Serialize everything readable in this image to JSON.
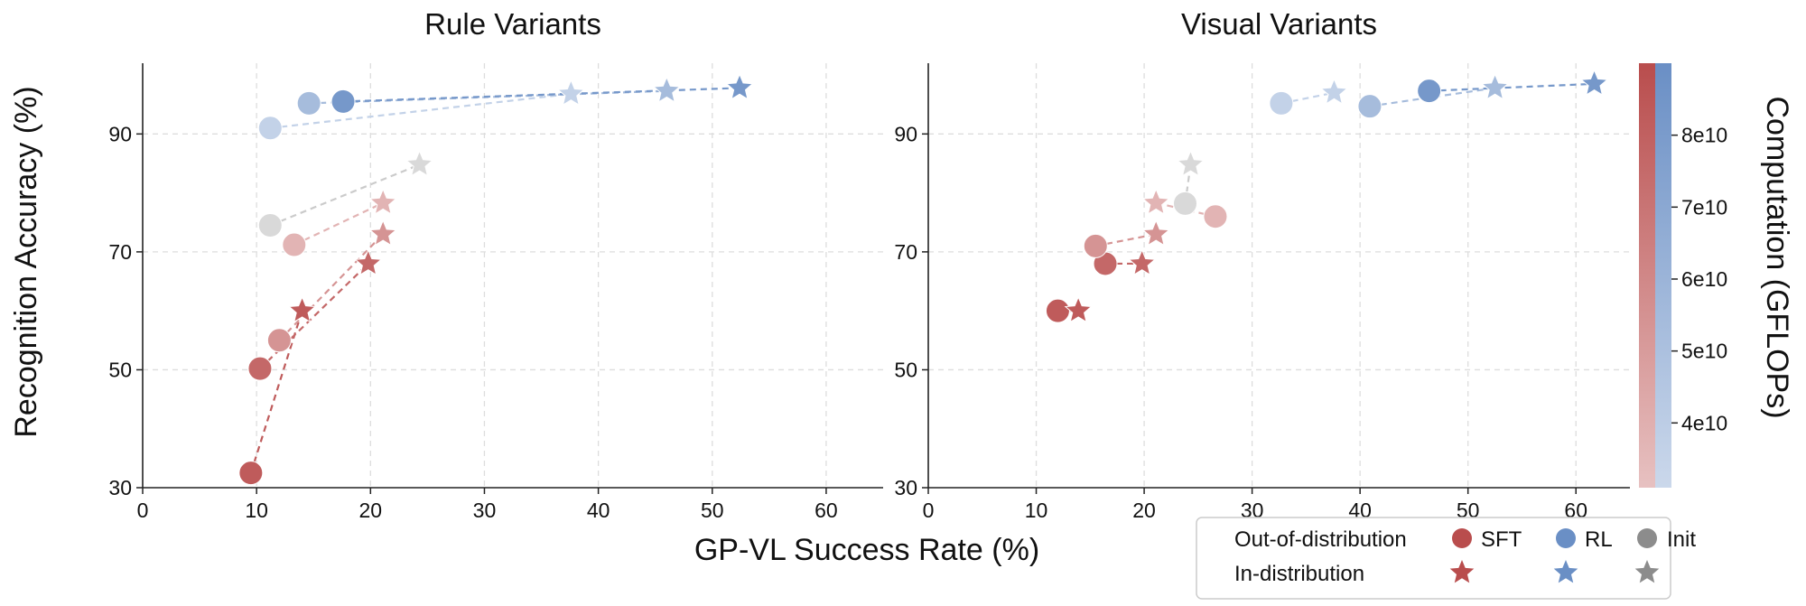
{
  "figure": {
    "xlabel": "GP-VL Success Rate (%)",
    "ylabel": "Recognition Accuracy (%)",
    "colorbar_label": "Computation (GFLOPs)",
    "colorbar_ticks": [
      "8e10",
      "7e10",
      "6e10",
      "5e10",
      "4e10"
    ],
    "colorbar_tick_values": [
      80000000000.0,
      70000000000.0,
      60000000000.0,
      50000000000.0,
      40000000000.0
    ],
    "colorbar_range": [
      31000000000.0,
      90000000000.0
    ]
  },
  "legend": {
    "row_ood_label": "Out-of-distribution",
    "row_id_label": "In-distribution",
    "sft_label": "SFT",
    "rl_label": "RL",
    "init_label": "Init"
  },
  "colors": {
    "sft": "#b94d4d",
    "rl": "#6a8fc5",
    "init": "#8c8c8c",
    "init_light": "#d9d9d9",
    "grid": "#dddddd"
  },
  "chart_data": [
    {
      "type": "scatter",
      "title": "Rule Variants",
      "xlabel": "GP-VL Success Rate (%)",
      "ylabel": "Recognition Accuracy (%)",
      "xlim": [
        0,
        65
      ],
      "ylim": [
        30,
        102
      ],
      "xticks": [
        0,
        10,
        20,
        30,
        40,
        50,
        60
      ],
      "yticks": [
        30,
        50,
        70,
        90
      ],
      "grid": true,
      "pairs": [
        {
          "group": "SFT",
          "alpha": 0.92,
          "ood": [
            9.5,
            32.5
          ],
          "id": [
            14.0,
            60.0
          ]
        },
        {
          "group": "SFT",
          "alpha": 0.85,
          "ood": [
            10.3,
            50.2
          ],
          "id": [
            19.8,
            68.0
          ]
        },
        {
          "group": "SFT",
          "alpha": 0.6,
          "ood": [
            12.0,
            55.0
          ],
          "id": [
            21.1,
            73.0
          ]
        },
        {
          "group": "SFT",
          "alpha": 0.42,
          "ood": [
            13.3,
            71.2
          ],
          "id": [
            21.1,
            78.3
          ]
        },
        {
          "group": "Init",
          "alpha": 1.0,
          "ood": [
            11.2,
            74.5
          ],
          "id": [
            24.3,
            84.8
          ]
        },
        {
          "group": "RL",
          "alpha": 0.4,
          "ood": [
            11.2,
            91.0
          ],
          "id": [
            37.6,
            96.8
          ]
        },
        {
          "group": "RL",
          "alpha": 0.6,
          "ood": [
            14.6,
            95.2
          ],
          "id": [
            46.0,
            97.3
          ]
        },
        {
          "group": "RL",
          "alpha": 0.92,
          "ood": [
            17.6,
            95.5
          ],
          "id": [
            52.4,
            97.8
          ]
        }
      ]
    },
    {
      "type": "scatter",
      "title": "Visual Variants",
      "xlabel": "",
      "ylabel": "",
      "xlim": [
        0,
        65
      ],
      "ylim": [
        30,
        102
      ],
      "xticks": [
        0,
        10,
        20,
        30,
        40,
        50,
        60
      ],
      "yticks": [
        30,
        50,
        70,
        90
      ],
      "grid": true,
      "pairs": [
        {
          "group": "SFT",
          "alpha": 0.92,
          "ood": [
            12.0,
            60.0
          ],
          "id": [
            13.9,
            60.0
          ]
        },
        {
          "group": "SFT",
          "alpha": 0.85,
          "ood": [
            16.4,
            68.0
          ],
          "id": [
            19.8,
            68.0
          ]
        },
        {
          "group": "SFT",
          "alpha": 0.6,
          "ood": [
            15.5,
            71.0
          ],
          "id": [
            21.1,
            73.0
          ]
        },
        {
          "group": "SFT",
          "alpha": 0.42,
          "ood": [
            26.6,
            76.0
          ],
          "id": [
            21.1,
            78.3
          ]
        },
        {
          "group": "Init",
          "alpha": 1.0,
          "ood": [
            23.8,
            78.2
          ],
          "id": [
            24.3,
            84.8
          ]
        },
        {
          "group": "RL",
          "alpha": 0.4,
          "ood": [
            32.7,
            95.2
          ],
          "id": [
            37.6,
            97.0
          ]
        },
        {
          "group": "RL",
          "alpha": 0.6,
          "ood": [
            40.9,
            94.7
          ],
          "id": [
            52.5,
            97.8
          ]
        },
        {
          "group": "RL",
          "alpha": 0.92,
          "ood": [
            46.4,
            97.3
          ],
          "id": [
            61.7,
            98.5
          ]
        }
      ]
    }
  ]
}
